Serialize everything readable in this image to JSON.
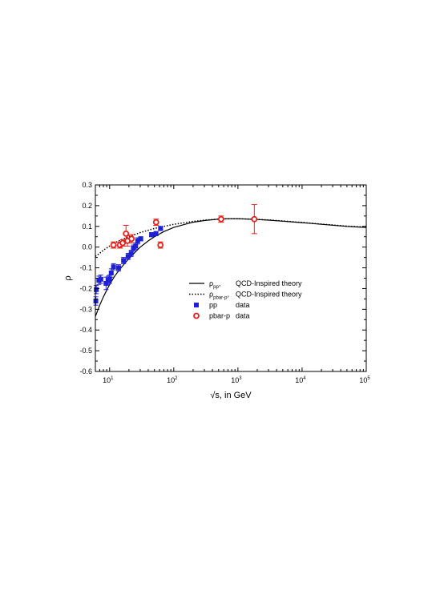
{
  "chart_data": {
    "type": "scatter",
    "xlabel": "√s, in GeV",
    "ylabel": "ρ",
    "xscale": "log",
    "xlim": [
      6,
      100000
    ],
    "ylim": [
      -0.6,
      0.3
    ],
    "grid": false,
    "legend_position": "center-right",
    "x_tick_labels": [
      {
        "base": "10",
        "exp": "1"
      },
      {
        "base": "10",
        "exp": "2"
      },
      {
        "base": "10",
        "exp": "3"
      },
      {
        "base": "10",
        "exp": "4"
      },
      {
        "base": "10",
        "exp": "5"
      }
    ],
    "y_ticks": [
      -0.6,
      -0.5,
      -0.4,
      -0.3,
      -0.2,
      -0.1,
      0.0,
      0.1,
      0.2,
      0.3
    ],
    "y_tick_labels": [
      "-0.6",
      "-0.5",
      "-0.4",
      "-0.3",
      "-0.2",
      "-0.1",
      "0.0",
      "0.1",
      "0.2",
      "0.3"
    ],
    "legend": [
      {
        "symbol": "ρ",
        "subscript": "pp",
        "suffix": ",",
        "label": "QCD-Inspired theory",
        "style": "solid-line"
      },
      {
        "symbol": "ρ",
        "subscript": "pbar-p",
        "suffix": ",",
        "label": "QCD-Inspired theory",
        "style": "dotted-line"
      },
      {
        "symbol": "pp",
        "subscript": "",
        "suffix": "",
        "label": "data",
        "style": "blue-square"
      },
      {
        "symbol": "pbar-p",
        "subscript": "",
        "suffix": "",
        "label": "data",
        "style": "red-circle"
      }
    ],
    "series": [
      {
        "style": "solid-line",
        "color": "#000000",
        "points": [
          [
            6,
            -0.335
          ],
          [
            7,
            -0.28
          ],
          [
            8,
            -0.24
          ],
          [
            10,
            -0.18
          ],
          [
            12,
            -0.14
          ],
          [
            15,
            -0.1
          ],
          [
            20,
            -0.055
          ],
          [
            25,
            -0.025
          ],
          [
            30,
            0.0
          ],
          [
            40,
            0.03
          ],
          [
            50,
            0.05
          ],
          [
            70,
            0.075
          ],
          [
            100,
            0.095
          ],
          [
            150,
            0.11
          ],
          [
            200,
            0.12
          ],
          [
            300,
            0.128
          ],
          [
            500,
            0.135
          ],
          [
            700,
            0.137
          ],
          [
            1000,
            0.137
          ],
          [
            2000,
            0.133
          ],
          [
            3000,
            0.13
          ],
          [
            5000,
            0.125
          ],
          [
            10000,
            0.118
          ],
          [
            20000,
            0.11
          ],
          [
            50000,
            0.1
          ],
          [
            100000,
            0.095
          ]
        ]
      },
      {
        "style": "dotted-line",
        "color": "#000000",
        "points": [
          [
            6,
            -0.045
          ],
          [
            7,
            -0.03
          ],
          [
            8,
            -0.015
          ],
          [
            10,
            0.005
          ],
          [
            12,
            0.02
          ],
          [
            15,
            0.035
          ],
          [
            20,
            0.05
          ],
          [
            30,
            0.07
          ],
          [
            50,
            0.09
          ],
          [
            70,
            0.1
          ],
          [
            100,
            0.11
          ],
          [
            150,
            0.118
          ],
          [
            200,
            0.124
          ],
          [
            300,
            0.13
          ],
          [
            500,
            0.135
          ],
          [
            700,
            0.137
          ],
          [
            1000,
            0.137
          ],
          [
            2000,
            0.134
          ],
          [
            3000,
            0.131
          ],
          [
            5000,
            0.126
          ],
          [
            10000,
            0.119
          ],
          [
            20000,
            0.111
          ],
          [
            50000,
            0.101
          ],
          [
            100000,
            0.096
          ]
        ]
      },
      {
        "style": "blue-square",
        "color": "#1f1fd6",
        "points": [
          {
            "x": 6.1,
            "y": -0.26,
            "err": 0.02
          },
          {
            "x": 6.2,
            "y": -0.205,
            "err": 0.02
          },
          {
            "x": 6.8,
            "y": -0.16,
            "err": 0.02
          },
          {
            "x": 7.3,
            "y": -0.155,
            "err": 0.02
          },
          {
            "x": 8.8,
            "y": -0.175,
            "err": 0.03
          },
          {
            "x": 9.5,
            "y": -0.16,
            "err": 0.02
          },
          {
            "x": 10.0,
            "y": -0.155,
            "err": 0.02
          },
          {
            "x": 10.6,
            "y": -0.125,
            "err": 0.02
          },
          {
            "x": 11.5,
            "y": -0.095,
            "err": 0.015
          },
          {
            "x": 13.8,
            "y": -0.1,
            "err": 0.015
          },
          {
            "x": 16.5,
            "y": -0.065,
            "err": 0.015
          },
          {
            "x": 19.4,
            "y": -0.045,
            "err": 0.015
          },
          {
            "x": 21.7,
            "y": -0.03,
            "err": 0.015
          },
          {
            "x": 23.5,
            "y": -0.005,
            "err": 0.015
          },
          {
            "x": 25.5,
            "y": 0.005,
            "err": 0.015
          },
          {
            "x": 27.4,
            "y": 0.03,
            "err": 0.015
          },
          {
            "x": 30.6,
            "y": 0.04,
            "err": 0.01
          },
          {
            "x": 45.0,
            "y": 0.06,
            "err": 0.01
          },
          {
            "x": 52.8,
            "y": 0.065,
            "err": 0.01
          },
          {
            "x": 62.3,
            "y": 0.09,
            "err": 0.01
          }
        ]
      },
      {
        "style": "red-circle",
        "color": "#e8201c",
        "points": [
          {
            "x": 11.5,
            "y": 0.01,
            "err": 0.015
          },
          {
            "x": 14.5,
            "y": 0.01,
            "err": 0.015
          },
          {
            "x": 16.0,
            "y": 0.02,
            "err": 0.015
          },
          {
            "x": 18.0,
            "y": 0.065,
            "err": 0.04
          },
          {
            "x": 19.0,
            "y": 0.03,
            "err": 0.025
          },
          {
            "x": 22.0,
            "y": 0.04,
            "err": 0.02
          },
          {
            "x": 53.0,
            "y": 0.12,
            "err": 0.015
          },
          {
            "x": 62.0,
            "y": 0.01,
            "err": 0.015
          },
          {
            "x": 546,
            "y": 0.135,
            "err": 0.015
          },
          {
            "x": 1800,
            "y": 0.135,
            "err": 0.07
          }
        ]
      }
    ]
  }
}
